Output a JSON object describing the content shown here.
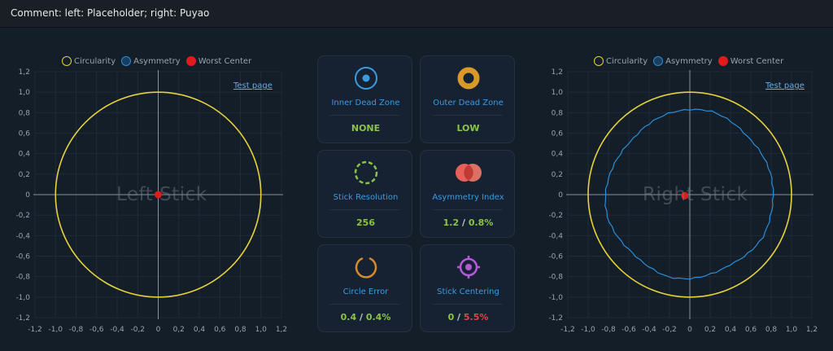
{
  "header": {
    "comment": "Comment: left: Placeholder; right: Puyao"
  },
  "legend": {
    "circularity": "Circularity",
    "asymmetry": "Asymmetry",
    "worst_center": "Worst Center"
  },
  "left_chart": {
    "watermark": "Left Stick",
    "test_link": "Test page"
  },
  "right_chart": {
    "watermark": "Right Stick",
    "test_link": "Test page"
  },
  "axis_ticks": {
    "x": [
      "-1,2",
      "-1,0",
      "-0,8",
      "-0,6",
      "-0,4",
      "-0,2",
      "0",
      "0,2",
      "0,4",
      "0,6",
      "0,8",
      "1,0",
      "1,2"
    ],
    "y": [
      "1,2",
      "1,0",
      "0,8",
      "0,6",
      "0,4",
      "0,2",
      "0",
      "-0,2",
      "-0,4",
      "-0,6",
      "-0,8",
      "-1,0",
      "-1,2"
    ]
  },
  "cards": {
    "inner_dead_zone": {
      "label": "Inner Dead Zone",
      "value": "NONE"
    },
    "outer_dead_zone": {
      "label": "Outer Dead Zone",
      "value": "LOW"
    },
    "stick_resolution": {
      "label": "Stick Resolution",
      "value": "256"
    },
    "asymmetry_index": {
      "label": "Asymmetry Index",
      "value_a": "1.2",
      "sep": " / ",
      "value_b": "0.8%"
    },
    "circle_error": {
      "label": "Circle Error",
      "value_a": "0.4",
      "sep": " / ",
      "value_b": "0.4%"
    },
    "stick_centering": {
      "label": "Stick Centering",
      "value_a": "0",
      "sep": " / ",
      "value_b": "5.5%"
    }
  },
  "colors": {
    "circularity": "#e6d23a",
    "asymmetry": "#2a8fd8",
    "worst_center": "#e01b1b",
    "good": "#8bc34a",
    "bad": "#e0463c"
  },
  "chart_data": [
    {
      "type": "scatter",
      "title": "Left Stick",
      "xlim": [
        -1.2,
        1.2
      ],
      "ylim": [
        -1.2,
        1.2
      ],
      "grid": true,
      "legend": "top-center",
      "series": [
        {
          "name": "Circularity",
          "shape": "circle",
          "radius": 1.0
        },
        {
          "name": "Worst Center",
          "points": [
            [
              0,
              0
            ]
          ]
        }
      ]
    },
    {
      "type": "scatter",
      "title": "Right Stick",
      "xlim": [
        -1.2,
        1.2
      ],
      "ylim": [
        -1.2,
        1.2
      ],
      "grid": true,
      "legend": "top-center",
      "series": [
        {
          "name": "Circularity",
          "shape": "circle",
          "radius": 1.0
        },
        {
          "name": "Asymmetry",
          "outline_radii": [
            0.82,
            0.82,
            0.81,
            0.8,
            0.82,
            0.84,
            0.83,
            0.82,
            0.8,
            0.78,
            0.79,
            0.81,
            0.83,
            0.84,
            0.82,
            0.8,
            0.81,
            0.83,
            0.82,
            0.8,
            0.79,
            0.81,
            0.83,
            0.82
          ]
        },
        {
          "name": "Worst Center",
          "points": [
            [
              -0.05,
              -0.01
            ]
          ]
        }
      ]
    }
  ]
}
